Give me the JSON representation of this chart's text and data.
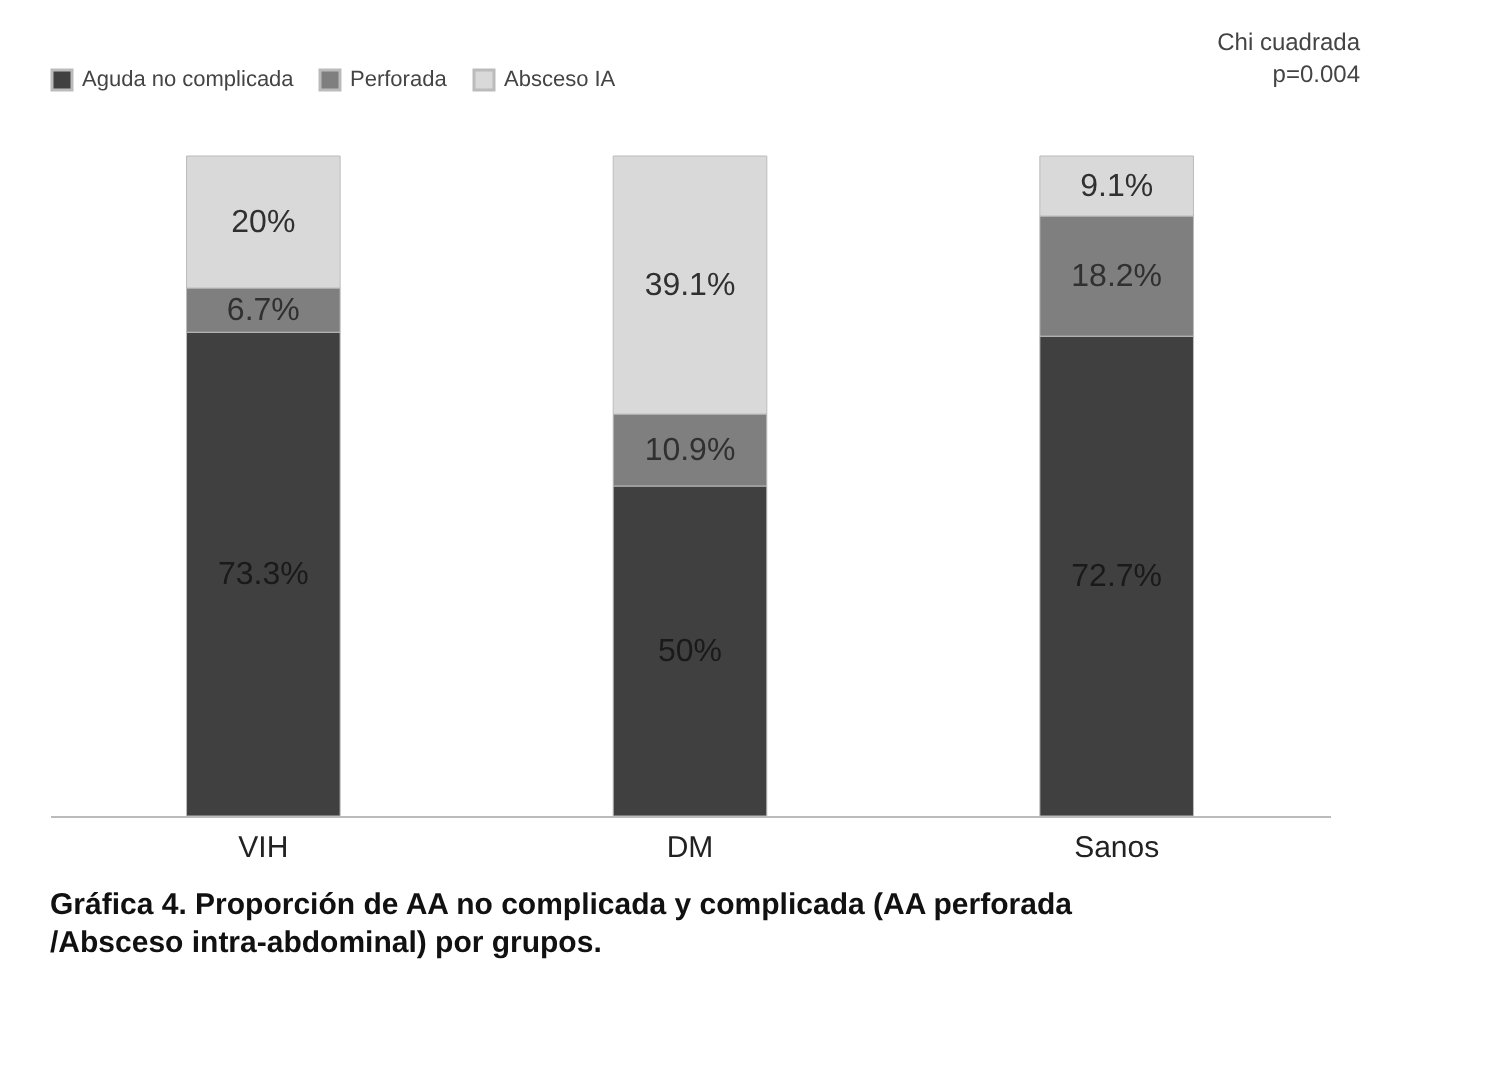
{
  "chart_data": {
    "type": "bar",
    "stacked": true,
    "title": "Gráfica 4. Proporción de AA no complicada y complicada (AA perforada\n/Absceso intra-abdominal) por grupos.",
    "categories": [
      "VIH",
      "DM",
      "Sanos"
    ],
    "series": [
      {
        "name": "Aguda no complicada",
        "color": "#404040",
        "values": [
          73.3,
          50,
          72.7
        ],
        "value_labels": [
          "73.3%",
          "50%",
          "72.7%"
        ]
      },
      {
        "name": "Perforada",
        "color": "#7f7f7f",
        "values": [
          6.7,
          10.9,
          18.2
        ],
        "value_labels": [
          "6.7%",
          "10.9%",
          "18.2%"
        ]
      },
      {
        "name": "Absceso IA",
        "color": "#d9d9d9",
        "values": [
          20,
          39.1,
          9.1
        ],
        "value_labels": [
          "20%",
          "39.1%",
          "9.1%"
        ]
      }
    ],
    "annotations": [
      "Chi cuadrada\np=0.004"
    ],
    "legend": "top"
  }
}
